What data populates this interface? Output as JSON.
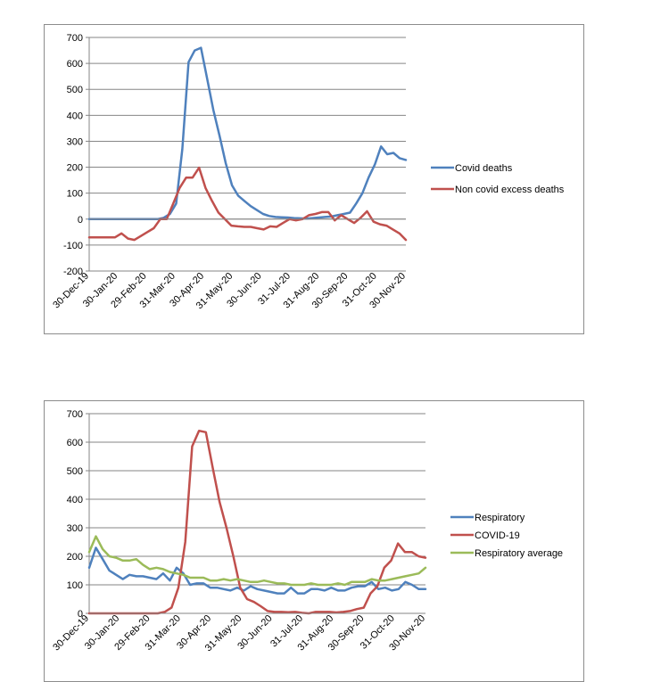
{
  "chart_data": [
    {
      "type": "line",
      "x_labels": [
        "30-Dec-19",
        "30-Jan-20",
        "29-Feb-20",
        "31-Mar-20",
        "30-Apr-20",
        "31-May-20",
        "30-Jun-20",
        "31-Jul-20",
        "31-Aug-20",
        "30-Sep-20",
        "31-Oct-20",
        "30-Nov-20"
      ],
      "ylim": [
        -200,
        700
      ],
      "yticks": [
        -200,
        -100,
        0,
        100,
        200,
        300,
        400,
        500,
        600,
        700
      ],
      "grid": true,
      "legend_position": "right",
      "series": [
        {
          "name": "Covid deaths",
          "color": "#4f81bd",
          "values": [
            0,
            0,
            0,
            0,
            0,
            0,
            0,
            0,
            0,
            0,
            0,
            0,
            5,
            20,
            60,
            270,
            605,
            650,
            660,
            540,
            420,
            320,
            215,
            130,
            90,
            70,
            50,
            35,
            20,
            12,
            8,
            7,
            6,
            4,
            3,
            2,
            4,
            6,
            8,
            10,
            15,
            20,
            25,
            60,
            100,
            160,
            210,
            280,
            250,
            255,
            235,
            228
          ]
        },
        {
          "name": "Non covid excess deaths",
          "color": "#c0504d",
          "values": [
            -70,
            -70,
            -70,
            -70,
            -70,
            -55,
            -75,
            -80,
            -65,
            -50,
            -35,
            0,
            0,
            60,
            120,
            160,
            160,
            198,
            120,
            70,
            25,
            0,
            -25,
            -28,
            -30,
            -30,
            -35,
            -40,
            -28,
            -30,
            -15,
            0,
            -5,
            0,
            15,
            20,
            27,
            27,
            -5,
            15,
            0,
            -15,
            5,
            30,
            -10,
            -20,
            -25,
            -40,
            -55,
            -80
          ]
        }
      ]
    },
    {
      "type": "line",
      "x_labels": [
        "30-Dec-19",
        "30-Jan-20",
        "29-Feb-20",
        "31-Mar-20",
        "30-Apr-20",
        "31-May-20",
        "30-Jun-20",
        "31-Jul-20",
        "31-Aug-20",
        "30-Sep-20",
        "31-Oct-20",
        "30-Nov-20"
      ],
      "ylim": [
        0,
        700
      ],
      "yticks": [
        0,
        100,
        200,
        300,
        400,
        500,
        600,
        700
      ],
      "grid": true,
      "legend_position": "right",
      "series": [
        {
          "name": "Respiratory",
          "color": "#4f81bd",
          "values": [
            160,
            230,
            190,
            150,
            135,
            120,
            135,
            130,
            130,
            125,
            120,
            140,
            115,
            160,
            140,
            100,
            105,
            105,
            90,
            90,
            85,
            80,
            90,
            80,
            95,
            85,
            80,
            75,
            70,
            70,
            90,
            70,
            70,
            85,
            85,
            80,
            90,
            80,
            80,
            90,
            95,
            95,
            110,
            85,
            90,
            80,
            85,
            110,
            100,
            85,
            85
          ]
        },
        {
          "name": "COVID-19",
          "color": "#c0504d",
          "values": [
            0,
            0,
            0,
            0,
            0,
            0,
            0,
            0,
            0,
            0,
            0,
            5,
            20,
            90,
            250,
            585,
            640,
            635,
            510,
            390,
            300,
            200,
            90,
            50,
            40,
            25,
            8,
            5,
            5,
            4,
            5,
            2,
            0,
            5,
            5,
            5,
            3,
            5,
            8,
            15,
            20,
            70,
            95,
            160,
            185,
            245,
            215,
            215,
            200,
            195
          ]
        },
        {
          "name": "Respiratory average",
          "color": "#9bbb59",
          "values": [
            215,
            270,
            225,
            200,
            195,
            185,
            185,
            190,
            170,
            155,
            160,
            155,
            145,
            140,
            135,
            125,
            125,
            125,
            115,
            115,
            120,
            115,
            120,
            115,
            110,
            110,
            115,
            110,
            105,
            105,
            100,
            100,
            100,
            105,
            100,
            100,
            100,
            105,
            100,
            110,
            110,
            110,
            120,
            115,
            115,
            120,
            125,
            130,
            135,
            140,
            160
          ]
        }
      ]
    }
  ]
}
